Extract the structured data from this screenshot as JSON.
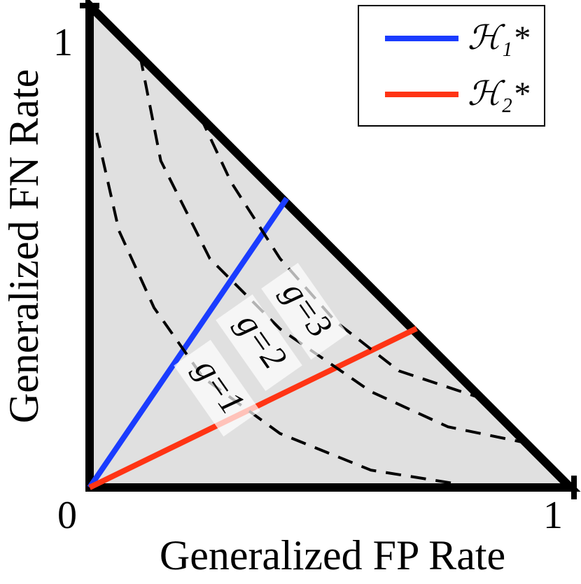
{
  "chart_data": {
    "type": "line",
    "xlabel": "Generalized FP Rate",
    "ylabel": "Generalized FN Rate",
    "xlim": [
      0,
      1
    ],
    "ylim": [
      0,
      1
    ],
    "xticks": [
      0,
      1
    ],
    "yticks": [
      1
    ],
    "legend": "upper right",
    "series": [
      {
        "name": "ℋ₁*",
        "color": "#1a3cff",
        "x": [
          0,
          0.41
        ],
        "values": [
          0,
          0.6
        ]
      },
      {
        "name": "ℋ₂*",
        "color": "#ff3414",
        "x": [
          0,
          0.68
        ],
        "values": [
          0,
          0.33
        ]
      },
      {
        "color": "#000000",
        "dashed": true,
        "label": "g=1",
        "x": [
          0.015,
          0.061,
          0.134,
          0.236,
          0.396,
          0.585,
          0.767
        ],
        "values": [
          0.736,
          0.533,
          0.373,
          0.228,
          0.112,
          0.036,
          0.007
        ]
      },
      {
        "color": "#000000",
        "dashed": true,
        "label": "g=2",
        "x": [
          0.105,
          0.148,
          0.25,
          0.396,
          0.585,
          0.745,
          0.92
        ],
        "values": [
          0.896,
          0.678,
          0.475,
          0.329,
          0.199,
          0.126,
          0.09
        ]
      },
      {
        "color": "#000000",
        "dashed": true,
        "label": "g=3",
        "x": [
          0.23,
          0.294,
          0.396,
          0.512,
          0.643,
          0.818
        ],
        "values": [
          0.77,
          0.634,
          0.475,
          0.344,
          0.242,
          0.184
        ]
      }
    ]
  }
}
